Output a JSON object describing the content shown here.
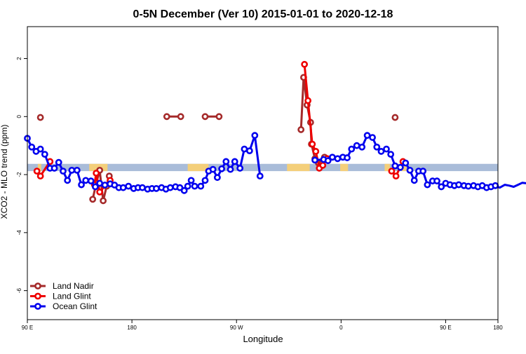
{
  "chart_data": {
    "type": "line",
    "title": "0-5N December (Ver 10)   2015-01-01 to 2020-12-18",
    "xlabel": "Longitude",
    "ylabel": "XCO2 - MLO trend (ppm)",
    "xlim": [
      -90,
      180
    ],
    "ylim": [
      -7,
      3.1
    ],
    "x_ticks": [
      {
        "value": -90,
        "label": "90 E"
      },
      {
        "value": -30,
        "label": "180"
      },
      {
        "value": 30,
        "label": "90 W"
      },
      {
        "value": 90,
        "label": "0"
      },
      {
        "value": 150,
        "label": "90 E"
      },
      {
        "value": 210,
        "label": "180"
      }
    ],
    "y_ticks": [
      -6,
      -4,
      -2,
      0,
      2
    ],
    "band": {
      "y_bottom": -1.88,
      "y_top": -1.63,
      "base_color": "#a9bcd9",
      "highlight_color": "#f4cf7a",
      "highlight_ranges": [
        [
          -84,
          -82
        ],
        [
          -54.5,
          -44
        ],
        [
          2,
          14
        ],
        [
          59,
          72
        ],
        [
          89.5,
          94
        ],
        [
          115,
          118
        ],
        [
          125,
          127.5
        ]
      ]
    },
    "series": [
      {
        "name": "Land Nadir",
        "color": "#a52a2a",
        "points": [
          [
            -82.5,
            -0.03
          ],
          [
            -52.5,
            -2.85
          ],
          [
            -50.5,
            -2.3
          ],
          [
            -48.5,
            -1.85
          ],
          [
            -46.5,
            -2.9
          ],
          [
            -44.5,
            -2.4
          ],
          [
            -43,
            -2.05
          ],
          [
            -10,
            0
          ],
          [
            -2,
            0
          ],
          [
            12,
            0
          ],
          [
            20,
            0
          ],
          [
            67,
            -0.45
          ],
          [
            68.5,
            1.35
          ],
          [
            70.5,
            0.4
          ],
          [
            72.5,
            -0.2
          ],
          [
            73,
            -0.95
          ],
          [
            75,
            -1.45
          ],
          [
            77,
            -1.6
          ],
          [
            79,
            -1.62
          ],
          [
            80.5,
            -1.4
          ],
          [
            121,
            -0.03
          ]
        ]
      },
      {
        "name": "Land Glint",
        "color": "#ee0000",
        "points": [
          [
            -84.5,
            -1.88
          ],
          [
            -82.5,
            -2.05
          ],
          [
            -77,
            -1.55
          ],
          [
            -51.5,
            -2.35
          ],
          [
            -50.5,
            -1.95
          ],
          [
            -48.5,
            -2.6
          ],
          [
            -42.5,
            -2.2
          ],
          [
            69,
            1.8
          ],
          [
            71,
            0.55
          ],
          [
            73.5,
            -0.95
          ],
          [
            75.5,
            -1.2
          ],
          [
            77.5,
            -1.78
          ],
          [
            79.5,
            -1.68
          ],
          [
            82,
            -1.45
          ],
          [
            119,
            -1.88
          ],
          [
            121.5,
            -2.05
          ],
          [
            125.5,
            -1.55
          ]
        ]
      },
      {
        "name": "Ocean Glint",
        "color": "#0000ee",
        "points": [
          [
            -90,
            -0.75
          ],
          [
            -87.5,
            -1.05
          ],
          [
            -85,
            -1.2
          ],
          [
            -82.5,
            -1.12
          ],
          [
            -80,
            -1.3
          ],
          [
            -77,
            -1.78
          ],
          [
            -74.5,
            -1.78
          ],
          [
            -72,
            -1.58
          ],
          [
            -69.5,
            -1.88
          ],
          [
            -67,
            -2.2
          ],
          [
            -64.5,
            -1.85
          ],
          [
            -61.5,
            -1.85
          ],
          [
            -59,
            -2.35
          ],
          [
            -56.5,
            -2.2
          ],
          [
            -53.5,
            -2.22
          ],
          [
            -51,
            -2.42
          ],
          [
            -48.5,
            -2.3
          ],
          [
            -45.5,
            -2.36
          ],
          [
            -42.5,
            -2.32
          ],
          [
            -40,
            -2.36
          ],
          [
            -37.5,
            -2.45
          ],
          [
            -35,
            -2.45
          ],
          [
            -32,
            -2.4
          ],
          [
            -29,
            -2.48
          ],
          [
            -26.5,
            -2.45
          ],
          [
            -24,
            -2.45
          ],
          [
            -21,
            -2.5
          ],
          [
            -18.5,
            -2.48
          ],
          [
            -16,
            -2.48
          ],
          [
            -13,
            -2.45
          ],
          [
            -10.5,
            -2.5
          ],
          [
            -8,
            -2.45
          ],
          [
            -5,
            -2.42
          ],
          [
            -2.5,
            -2.45
          ],
          [
            0,
            -2.55
          ],
          [
            2,
            -2.4
          ],
          [
            4,
            -2.2
          ],
          [
            6,
            -2.4
          ],
          [
            9.5,
            -2.4
          ],
          [
            12,
            -2.2
          ],
          [
            14,
            -1.88
          ],
          [
            16.5,
            -1.82
          ],
          [
            19,
            -2.1
          ],
          [
            21.5,
            -1.8
          ],
          [
            24,
            -1.55
          ],
          [
            26.5,
            -1.82
          ],
          [
            29,
            -1.55
          ],
          [
            32,
            -1.78
          ],
          [
            34.5,
            -1.12
          ],
          [
            37.5,
            -1.18
          ],
          [
            40.5,
            -0.65
          ],
          [
            43.5,
            -2.05
          ],
          [
            75,
            -1.5
          ],
          [
            80,
            -1.48
          ],
          [
            82.5,
            -1.52
          ],
          [
            85,
            -1.4
          ],
          [
            88,
            -1.45
          ],
          [
            91,
            -1.4
          ],
          [
            93.5,
            -1.42
          ],
          [
            96,
            -1.12
          ],
          [
            99,
            -1.0
          ],
          [
            102,
            -1.05
          ],
          [
            105,
            -0.65
          ],
          [
            108,
            -0.72
          ],
          [
            110.5,
            -1.05
          ],
          [
            113,
            -1.2
          ],
          [
            116,
            -1.12
          ],
          [
            118.5,
            -1.3
          ],
          [
            121,
            -1.7
          ],
          [
            124,
            -1.75
          ],
          [
            127,
            -1.6
          ],
          [
            129.5,
            -1.85
          ],
          [
            132,
            -2.2
          ],
          [
            134.5,
            -1.88
          ],
          [
            137,
            -1.88
          ],
          [
            139.5,
            -2.35
          ],
          [
            142.5,
            -2.22
          ],
          [
            145,
            -2.22
          ],
          [
            147.5,
            -2.42
          ],
          [
            150,
            -2.3
          ],
          [
            152.5,
            -2.35
          ],
          [
            155,
            -2.38
          ],
          [
            157.5,
            -2.35
          ],
          [
            160.5,
            -2.38
          ],
          [
            163,
            -2.4
          ],
          [
            166,
            -2.38
          ],
          [
            168.5,
            -2.42
          ],
          [
            171,
            -2.38
          ],
          [
            173.5,
            -2.45
          ],
          [
            176,
            -2.42
          ],
          [
            178.5,
            -2.38
          ],
          [
            181,
            -2.45
          ],
          [
            184,
            -2.35
          ],
          [
            186.5,
            -2.38
          ],
          [
            189,
            -2.42
          ],
          [
            191.5,
            -2.35
          ],
          [
            194,
            -2.28
          ],
          [
            196.5,
            -2.3
          ],
          [
            199,
            -2.45
          ],
          [
            202,
            -2.2
          ],
          [
            204.5,
            -2.3
          ],
          [
            207,
            -2.22
          ],
          [
            209.5,
            -2.35
          ]
        ]
      }
    ],
    "legend": {
      "placement": "bottom-left",
      "entries": [
        "Land Nadir",
        "Land Glint",
        "Ocean Glint"
      ]
    }
  }
}
